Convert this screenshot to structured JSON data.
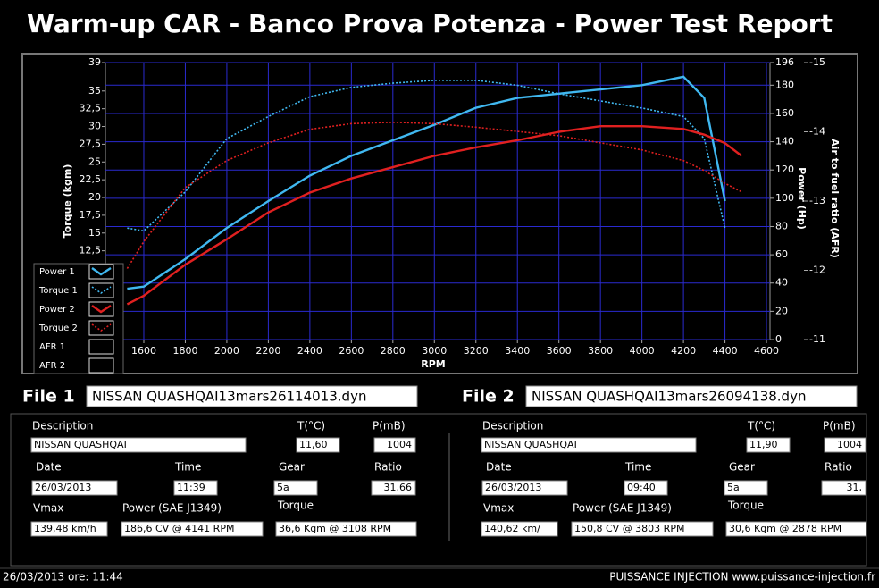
{
  "header": {
    "title": "Warm-up CAR  - Banco Prova Potenza -  Power Test Report"
  },
  "chart_data": {
    "type": "line",
    "x_label": "RPM",
    "y_label": "Torque (kgm)",
    "y2_label": "Power (Hp)",
    "y3_label": "Air to fuel ratio (AFR)",
    "x": [
      1520,
      1600,
      1800,
      2000,
      2200,
      2400,
      2600,
      2800,
      3000,
      3200,
      3400,
      3600,
      3800,
      4000,
      4200,
      4300,
      4400,
      4480
    ],
    "xlim": [
      1415,
      4617
    ],
    "xticks": [
      1600,
      1800,
      2000,
      2200,
      2400,
      2600,
      2800,
      3000,
      3200,
      3400,
      3600,
      3800,
      4000,
      4200,
      4400,
      4600
    ],
    "ylim": [
      0,
      39
    ],
    "yticks": [
      39,
      35,
      {
        "value": 32.5,
        "label": "32,5"
      },
      30,
      {
        "value": 27.5,
        "label": "27,5"
      },
      25,
      {
        "value": 22.5,
        "label": "22,5"
      },
      20,
      {
        "value": 17.5,
        "label": "17,5"
      },
      15,
      {
        "value": 12.5,
        "label": "12,5"
      }
    ],
    "y2lim": [
      0,
      196
    ],
    "y2ticks": [
      0,
      20,
      40,
      60,
      80,
      100,
      120,
      140,
      160,
      180,
      196
    ],
    "y3lim": [
      -11,
      -15
    ],
    "y3ticks": [
      -15,
      -14,
      -13,
      -12,
      -11
    ],
    "grid": true,
    "legend": "bottom-left",
    "series": [
      {
        "name": "Power 1",
        "color": "#40b8f0",
        "style": "solid",
        "axis": "y2",
        "values": [
          36,
          37.5,
          57,
          79,
          98,
          116,
          130,
          141,
          152,
          164,
          171,
          174,
          177,
          180,
          186,
          171,
          98,
          null
        ]
      },
      {
        "name": "Torque 1",
        "color": "#40b8f0",
        "style": "dotted",
        "values": [
          15.7,
          15.3,
          20.8,
          28.3,
          31.4,
          34.2,
          35.5,
          36.1,
          36.5,
          36.5,
          35.8,
          34.6,
          33.6,
          32.6,
          31.4,
          28.3,
          15.7,
          null
        ]
      },
      {
        "name": "Power 2",
        "color": "#e02020",
        "style": "solid",
        "axis": "y2",
        "values": [
          25,
          31,
          53,
          71,
          90,
          104,
          114,
          122,
          130,
          136,
          141,
          147,
          151,
          151,
          149,
          145,
          139,
          130
        ]
      },
      {
        "name": "Torque 2",
        "color": "#e02020",
        "style": "dotted",
        "values": [
          10,
          13.8,
          21.4,
          25.2,
          27.7,
          29.6,
          30.4,
          30.6,
          30.4,
          29.9,
          29.3,
          28.7,
          27.7,
          26.7,
          25.2,
          23.8,
          22,
          20.8
        ]
      }
    ],
    "afr_series": [
      {
        "name": "AFR 1"
      },
      {
        "name": "AFR 2"
      }
    ]
  },
  "files": [
    {
      "label": "File 1",
      "filename": "NISSAN QUASHQAI13mars26114013.dyn",
      "fields": [
        {
          "label": "Description",
          "value": "NISSAN QUASHQAI"
        },
        {
          "label": "T(°C)",
          "value": "11,60"
        },
        {
          "label": "P(mB)",
          "value": "1004"
        },
        {
          "label": "Date",
          "value": "26/03/2013"
        },
        {
          "label": "Time",
          "value": "11:39"
        },
        {
          "label": "Gear",
          "value": "5a"
        },
        {
          "label": "Ratio",
          "value": "31,66"
        },
        {
          "label": "Vmax",
          "value": "139,48 km/h"
        },
        {
          "label": "Power (SAE J1349)",
          "value": "186,6 CV  @ 4141  RPM"
        },
        {
          "label": "Torque",
          "value": "36,6 Kgm  @ 3108  RPM"
        }
      ]
    },
    {
      "label": "File 2",
      "filename": "NISSAN QUASHQAI13mars26094138.dyn",
      "fields": [
        {
          "label": "Description",
          "value": "NISSAN QUASHQAI"
        },
        {
          "label": "T(°C)",
          "value": "11,90"
        },
        {
          "label": "P(mB)",
          "value": "1004"
        },
        {
          "label": "Date",
          "value": "26/03/2013"
        },
        {
          "label": "Time",
          "value": "09:40"
        },
        {
          "label": "Gear",
          "value": "5a"
        },
        {
          "label": "Ratio",
          "value": "31,"
        },
        {
          "label": "Vmax",
          "value": "140,62 km/"
        },
        {
          "label": "Power (SAE J1349)",
          "value": "150,8 CV  @ 3803  RPM"
        },
        {
          "label": "Torque",
          "value": "30,6 Kgm  @ 2878  RPM"
        }
      ]
    }
  ],
  "footer": {
    "left": "26/03/2013 ore: 11:44",
    "right": "PUISSANCE INJECTION www.puissance-injection.fr"
  }
}
